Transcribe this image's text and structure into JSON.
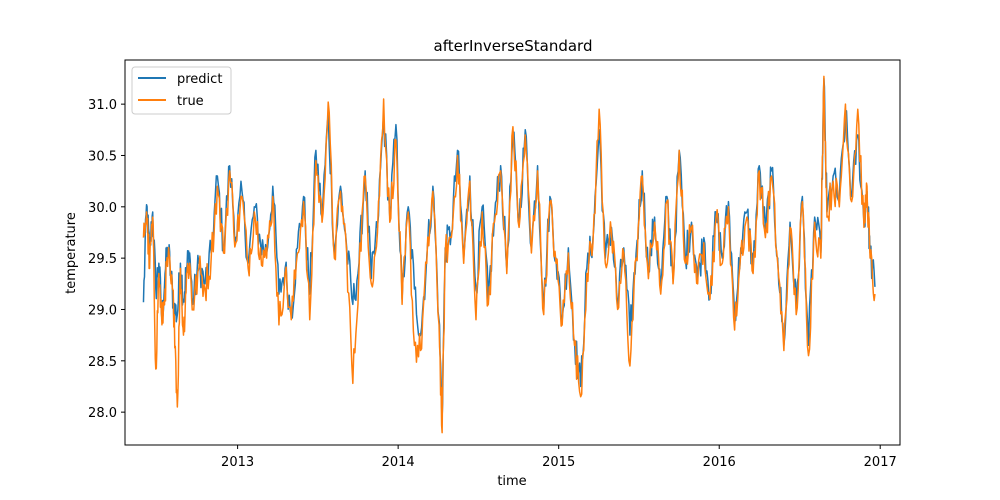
{
  "chart_data": {
    "type": "line",
    "title": "afterInverseStandard",
    "xlabel": "time",
    "ylabel": "temperature",
    "xlim": [
      "2012-04-20",
      "2017-02-15"
    ],
    "ylim": [
      27.68,
      31.43
    ],
    "x_ticks": [
      "2013",
      "2014",
      "2015",
      "2016",
      "2017"
    ],
    "y_ticks": [
      "28.0",
      "28.5",
      "29.0",
      "29.5",
      "30.0",
      "30.5",
      "31.0"
    ],
    "grid": false,
    "legend_position": "top-left",
    "x_range": [
      "2012-06-01",
      "2016-12-20"
    ],
    "series": [
      {
        "name": "predict",
        "color": "#1f77b4",
        "points": [
          [
            "2012-06-01",
            29.07
          ],
          [
            "2012-06-08",
            30.02
          ],
          [
            "2012-06-15",
            29.55
          ],
          [
            "2012-06-22",
            29.95
          ],
          [
            "2012-06-29",
            29.2
          ],
          [
            "2012-07-06",
            29.45
          ],
          [
            "2012-07-13",
            28.9
          ],
          [
            "2012-07-20",
            29.35
          ],
          [
            "2012-07-27",
            29.6
          ],
          [
            "2012-08-03",
            29.3
          ],
          [
            "2012-08-10",
            29.0
          ],
          [
            "2012-08-17",
            28.95
          ],
          [
            "2012-08-24",
            29.45
          ],
          [
            "2012-08-31",
            29.1
          ],
          [
            "2012-09-07",
            29.4
          ],
          [
            "2012-09-14",
            29.55
          ],
          [
            "2012-09-21",
            29.05
          ],
          [
            "2012-10-05",
            29.45
          ],
          [
            "2012-10-19",
            29.25
          ],
          [
            "2012-11-02",
            29.55
          ],
          [
            "2012-11-16",
            30.3
          ],
          [
            "2012-11-30",
            29.6
          ],
          [
            "2012-12-14",
            30.4
          ],
          [
            "2012-12-28",
            29.7
          ],
          [
            "2013-01-11",
            30.15
          ],
          [
            "2013-01-25",
            29.45
          ],
          [
            "2013-02-08",
            30.0
          ],
          [
            "2013-02-22",
            29.65
          ],
          [
            "2013-03-08",
            29.55
          ],
          [
            "2013-03-22",
            30.2
          ],
          [
            "2013-04-05",
            29.15
          ],
          [
            "2013-04-19",
            29.4
          ],
          [
            "2013-05-03",
            28.95
          ],
          [
            "2013-05-17",
            29.6
          ],
          [
            "2013-05-31",
            30.1
          ],
          [
            "2013-06-14",
            29.15
          ],
          [
            "2013-06-28",
            30.55
          ],
          [
            "2013-07-12",
            29.9
          ],
          [
            "2013-07-26",
            30.9
          ],
          [
            "2013-08-09",
            29.55
          ],
          [
            "2013-08-23",
            30.2
          ],
          [
            "2013-09-06",
            29.6
          ],
          [
            "2013-09-20",
            29.05
          ],
          [
            "2013-10-04",
            29.45
          ],
          [
            "2013-10-18",
            30.35
          ],
          [
            "2013-11-01",
            29.3
          ],
          [
            "2013-11-15",
            29.8
          ],
          [
            "2013-11-29",
            30.9
          ],
          [
            "2013-12-13",
            29.9
          ],
          [
            "2013-12-27",
            30.8
          ],
          [
            "2014-01-10",
            29.1
          ],
          [
            "2014-01-24",
            30.0
          ],
          [
            "2014-02-07",
            29.2
          ],
          [
            "2014-02-21",
            28.75
          ],
          [
            "2014-03-07",
            29.5
          ],
          [
            "2014-03-21",
            30.2
          ],
          [
            "2014-04-04",
            28.9
          ],
          [
            "2014-04-11",
            27.95
          ],
          [
            "2014-04-18",
            29.6
          ],
          [
            "2014-05-02",
            29.75
          ],
          [
            "2014-05-16",
            30.55
          ],
          [
            "2014-05-30",
            29.5
          ],
          [
            "2014-06-13",
            30.3
          ],
          [
            "2014-06-27",
            29.2
          ],
          [
            "2014-07-11",
            30.0
          ],
          [
            "2014-07-25",
            29.1
          ],
          [
            "2014-08-08",
            29.9
          ],
          [
            "2014-08-22",
            30.4
          ],
          [
            "2014-09-05",
            29.4
          ],
          [
            "2014-09-19",
            30.7
          ],
          [
            "2014-10-03",
            29.85
          ],
          [
            "2014-10-17",
            30.75
          ],
          [
            "2014-10-31",
            29.6
          ],
          [
            "2014-11-14",
            30.4
          ],
          [
            "2014-11-28",
            29.0
          ],
          [
            "2014-12-12",
            30.1
          ],
          [
            "2014-12-26",
            29.5
          ],
          [
            "2015-01-09",
            28.9
          ],
          [
            "2015-01-23",
            29.6
          ],
          [
            "2015-02-06",
            28.7
          ],
          [
            "2015-02-20",
            28.25
          ],
          [
            "2015-03-06",
            29.4
          ],
          [
            "2015-03-20",
            29.7
          ],
          [
            "2015-04-03",
            30.75
          ],
          [
            "2015-04-17",
            29.5
          ],
          [
            "2015-05-01",
            29.8
          ],
          [
            "2015-05-15",
            29.05
          ],
          [
            "2015-05-29",
            29.6
          ],
          [
            "2015-06-12",
            28.75
          ],
          [
            "2015-06-26",
            29.55
          ],
          [
            "2015-07-10",
            30.35
          ],
          [
            "2015-07-24",
            29.35
          ],
          [
            "2015-08-07",
            29.9
          ],
          [
            "2015-08-21",
            29.2
          ],
          [
            "2015-09-04",
            30.1
          ],
          [
            "2015-09-18",
            29.3
          ],
          [
            "2015-10-02",
            30.55
          ],
          [
            "2015-10-16",
            29.5
          ],
          [
            "2015-10-30",
            29.85
          ],
          [
            "2015-11-13",
            29.3
          ],
          [
            "2015-11-27",
            29.7
          ],
          [
            "2015-12-11",
            29.15
          ],
          [
            "2015-12-25",
            29.95
          ],
          [
            "2016-01-08",
            29.5
          ],
          [
            "2016-01-22",
            30.05
          ],
          [
            "2016-02-05",
            28.95
          ],
          [
            "2016-02-19",
            29.6
          ],
          [
            "2016-03-04",
            29.95
          ],
          [
            "2016-03-18",
            29.4
          ],
          [
            "2016-04-01",
            30.4
          ],
          [
            "2016-04-15",
            29.75
          ],
          [
            "2016-04-29",
            30.35
          ],
          [
            "2016-05-13",
            29.5
          ],
          [
            "2016-05-27",
            28.65
          ],
          [
            "2016-06-10",
            29.85
          ],
          [
            "2016-06-24",
            29.0
          ],
          [
            "2016-07-08",
            30.1
          ],
          [
            "2016-07-22",
            28.65
          ],
          [
            "2016-08-05",
            29.9
          ],
          [
            "2016-08-19",
            29.55
          ],
          [
            "2016-08-26",
            31.25
          ],
          [
            "2016-09-02",
            29.95
          ],
          [
            "2016-09-16",
            30.3
          ],
          [
            "2016-09-30",
            30.05
          ],
          [
            "2016-10-14",
            30.9
          ],
          [
            "2016-10-28",
            30.1
          ],
          [
            "2016-11-11",
            30.7
          ],
          [
            "2016-11-25",
            29.85
          ],
          [
            "2016-12-02",
            30.15
          ],
          [
            "2016-12-09",
            29.55
          ],
          [
            "2016-12-20",
            29.22
          ]
        ]
      },
      {
        "name": "true",
        "color": "#ff7f0e",
        "points": [
          [
            "2012-06-01",
            29.7
          ],
          [
            "2012-06-08",
            29.95
          ],
          [
            "2012-06-15",
            29.4
          ],
          [
            "2012-06-22",
            29.9
          ],
          [
            "2012-06-29",
            28.42
          ],
          [
            "2012-07-06",
            29.35
          ],
          [
            "2012-07-13",
            28.85
          ],
          [
            "2012-07-20",
            29.2
          ],
          [
            "2012-07-27",
            29.5
          ],
          [
            "2012-08-03",
            29.25
          ],
          [
            "2012-08-10",
            28.95
          ],
          [
            "2012-08-17",
            28.05
          ],
          [
            "2012-08-24",
            29.4
          ],
          [
            "2012-08-31",
            28.75
          ],
          [
            "2012-09-07",
            29.35
          ],
          [
            "2012-09-14",
            29.45
          ],
          [
            "2012-09-21",
            29.0
          ],
          [
            "2012-10-05",
            29.4
          ],
          [
            "2012-10-19",
            29.2
          ],
          [
            "2012-11-02",
            29.5
          ],
          [
            "2012-11-16",
            30.2
          ],
          [
            "2012-11-30",
            29.55
          ],
          [
            "2012-12-14",
            30.35
          ],
          [
            "2012-12-28",
            29.65
          ],
          [
            "2013-01-11",
            30.1
          ],
          [
            "2013-01-25",
            29.4
          ],
          [
            "2013-02-08",
            29.95
          ],
          [
            "2013-02-22",
            29.6
          ],
          [
            "2013-03-08",
            29.5
          ],
          [
            "2013-03-22",
            30.1
          ],
          [
            "2013-04-05",
            28.85
          ],
          [
            "2013-04-19",
            29.35
          ],
          [
            "2013-05-03",
            28.9
          ],
          [
            "2013-05-17",
            29.55
          ],
          [
            "2013-05-31",
            30.05
          ],
          [
            "2013-06-14",
            28.9
          ],
          [
            "2013-06-28",
            30.45
          ],
          [
            "2013-07-12",
            29.85
          ],
          [
            "2013-07-26",
            31.02
          ],
          [
            "2013-08-09",
            29.5
          ],
          [
            "2013-08-23",
            30.15
          ],
          [
            "2013-09-06",
            29.55
          ],
          [
            "2013-09-20",
            28.28
          ],
          [
            "2013-10-04",
            29.4
          ],
          [
            "2013-10-18",
            30.3
          ],
          [
            "2013-11-01",
            29.25
          ],
          [
            "2013-11-15",
            29.75
          ],
          [
            "2013-11-29",
            31.05
          ],
          [
            "2013-12-13",
            29.85
          ],
          [
            "2013-12-27",
            30.65
          ],
          [
            "2014-01-10",
            29.05
          ],
          [
            "2014-01-24",
            29.95
          ],
          [
            "2014-02-07",
            28.65
          ],
          [
            "2014-02-21",
            28.6
          ],
          [
            "2014-03-07",
            29.45
          ],
          [
            "2014-03-21",
            30.15
          ],
          [
            "2014-04-04",
            28.85
          ],
          [
            "2014-04-11",
            27.8
          ],
          [
            "2014-04-18",
            29.55
          ],
          [
            "2014-05-02",
            29.7
          ],
          [
            "2014-05-16",
            30.5
          ],
          [
            "2014-05-30",
            29.45
          ],
          [
            "2014-06-13",
            30.25
          ],
          [
            "2014-06-27",
            28.9
          ],
          [
            "2014-07-11",
            29.95
          ],
          [
            "2014-07-25",
            29.05
          ],
          [
            "2014-08-08",
            29.85
          ],
          [
            "2014-08-22",
            30.35
          ],
          [
            "2014-09-05",
            29.35
          ],
          [
            "2014-09-19",
            30.78
          ],
          [
            "2014-10-03",
            29.8
          ],
          [
            "2014-10-17",
            30.7
          ],
          [
            "2014-10-31",
            29.55
          ],
          [
            "2014-11-14",
            30.35
          ],
          [
            "2014-11-28",
            28.95
          ],
          [
            "2014-12-12",
            30.05
          ],
          [
            "2014-12-26",
            29.45
          ],
          [
            "2015-01-09",
            28.85
          ],
          [
            "2015-01-23",
            29.55
          ],
          [
            "2015-02-06",
            28.65
          ],
          [
            "2015-02-20",
            28.15
          ],
          [
            "2015-03-06",
            29.35
          ],
          [
            "2015-03-20",
            29.65
          ],
          [
            "2015-04-03",
            30.95
          ],
          [
            "2015-04-17",
            29.45
          ],
          [
            "2015-05-01",
            29.75
          ],
          [
            "2015-05-15",
            29.0
          ],
          [
            "2015-05-29",
            29.55
          ],
          [
            "2015-06-12",
            28.45
          ],
          [
            "2015-06-26",
            29.5
          ],
          [
            "2015-07-10",
            30.3
          ],
          [
            "2015-07-24",
            29.3
          ],
          [
            "2015-08-07",
            29.85
          ],
          [
            "2015-08-21",
            29.15
          ],
          [
            "2015-09-04",
            30.05
          ],
          [
            "2015-09-18",
            29.25
          ],
          [
            "2015-10-02",
            30.55
          ],
          [
            "2015-10-16",
            29.45
          ],
          [
            "2015-10-30",
            29.8
          ],
          [
            "2015-11-13",
            29.25
          ],
          [
            "2015-11-27",
            29.65
          ],
          [
            "2015-12-11",
            29.1
          ],
          [
            "2015-12-25",
            29.9
          ],
          [
            "2016-01-08",
            29.45
          ],
          [
            "2016-01-22",
            30.0
          ],
          [
            "2016-02-05",
            28.8
          ],
          [
            "2016-02-19",
            29.55
          ],
          [
            "2016-03-04",
            29.9
          ],
          [
            "2016-03-18",
            29.35
          ],
          [
            "2016-04-01",
            30.35
          ],
          [
            "2016-04-15",
            29.7
          ],
          [
            "2016-04-29",
            30.3
          ],
          [
            "2016-05-13",
            29.45
          ],
          [
            "2016-05-27",
            28.6
          ],
          [
            "2016-06-10",
            29.8
          ],
          [
            "2016-06-24",
            28.95
          ],
          [
            "2016-07-08",
            30.05
          ],
          [
            "2016-07-22",
            28.55
          ],
          [
            "2016-08-05",
            29.85
          ],
          [
            "2016-08-19",
            29.5
          ],
          [
            "2016-08-26",
            31.27
          ],
          [
            "2016-09-02",
            29.9
          ],
          [
            "2016-09-16",
            30.25
          ],
          [
            "2016-09-30",
            30.0
          ],
          [
            "2016-10-14",
            31.0
          ],
          [
            "2016-10-28",
            30.05
          ],
          [
            "2016-11-11",
            30.95
          ],
          [
            "2016-11-25",
            29.8
          ],
          [
            "2016-12-02",
            30.2
          ],
          [
            "2016-12-09",
            29.5
          ],
          [
            "2016-12-20",
            29.15
          ]
        ]
      }
    ]
  }
}
